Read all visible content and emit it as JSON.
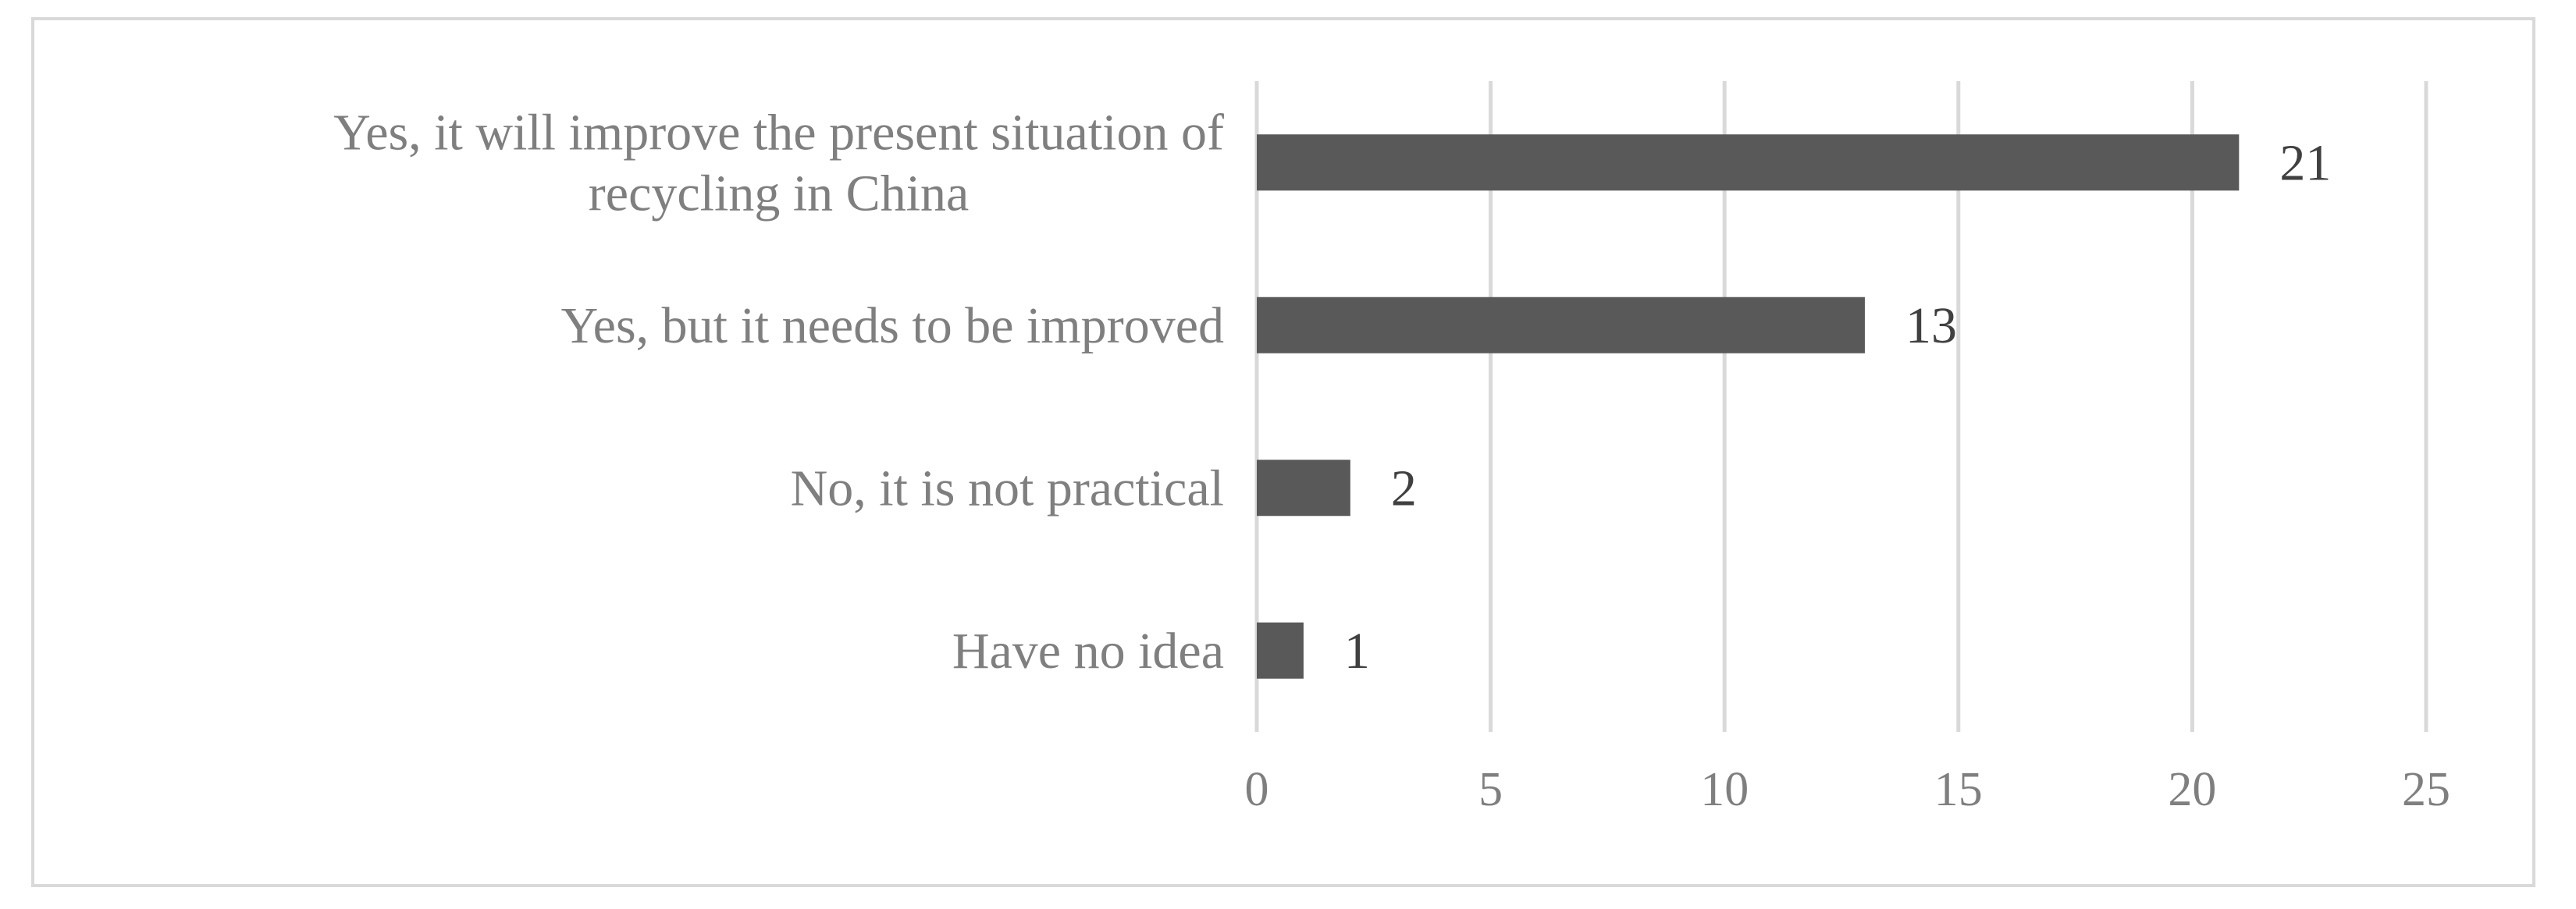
{
  "chart_data": {
    "type": "bar",
    "orientation": "horizontal",
    "categories": [
      [
        "Yes, it will improve the present situation of",
        "recycling in China"
      ],
      [
        "Yes, but it needs to be improved"
      ],
      [
        "No, it is not practical"
      ],
      [
        "Have no idea"
      ]
    ],
    "values": [
      21,
      13,
      2,
      1
    ],
    "data_labels": [
      "21",
      "13",
      "2",
      "1"
    ],
    "xlim": [
      0,
      25
    ],
    "x_ticks": [
      0,
      5,
      10,
      15,
      20,
      25
    ],
    "x_tick_labels": [
      "0",
      "5",
      "10",
      "15",
      "20",
      "25"
    ],
    "grid": true,
    "legend": "none",
    "title": "",
    "xlabel": "",
    "ylabel": "",
    "colors": {
      "bar": "#595959",
      "grid": "#d9d9d9",
      "category_text": "#7f7f7f",
      "tick_text": "#7f7f7f",
      "data_label_text": "#404040",
      "frame": "#d9d9d9"
    }
  }
}
